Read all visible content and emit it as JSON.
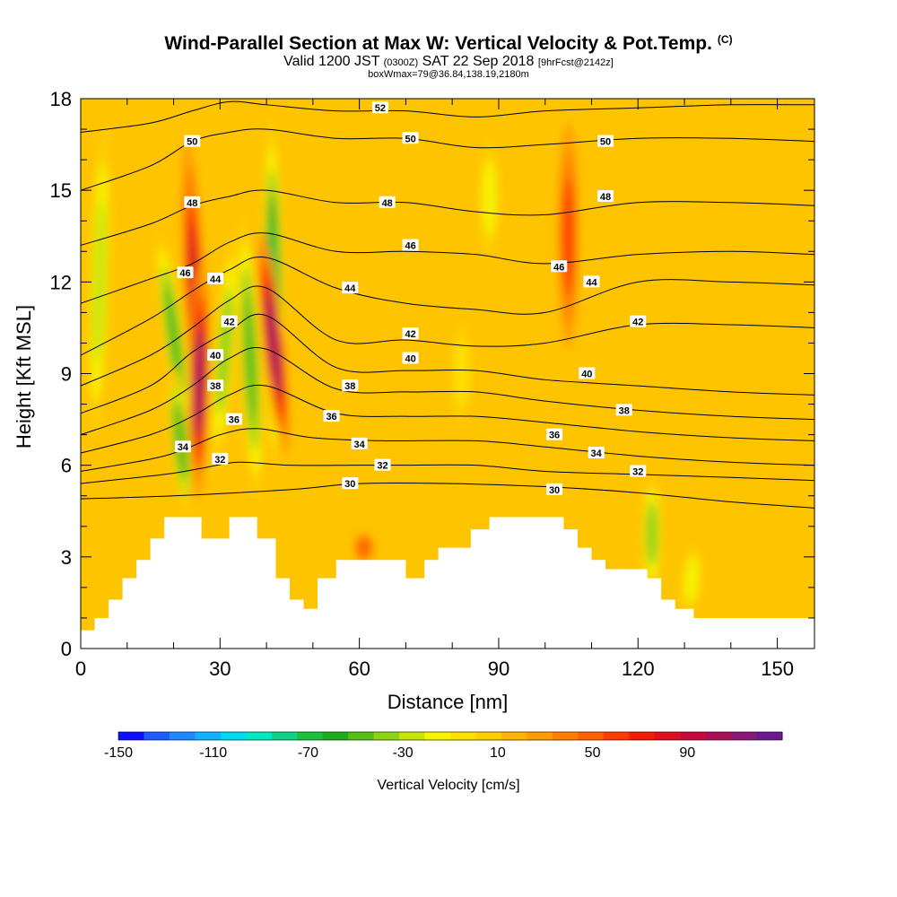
{
  "header": {
    "title": "Wind-Parallel Section at Max W: Vertical Velocity & Pot.Temp.",
    "title_mark": "(C)",
    "valid_prefix": "Valid 1200 JST",
    "valid_utc": "(0300Z)",
    "valid_date": "SAT 22 Sep 2018",
    "forecast": "[9hrFcst@2142z]",
    "box_info": "boxWmax=79@36.84,138.19,2180m"
  },
  "chart_data": {
    "type": "heatmap",
    "xlabel": "Distance [nm]",
    "ylabel": "Height [Kft MSL]",
    "xlim": [
      0,
      158
    ],
    "ylim": [
      0,
      18
    ],
    "x_ticks": [
      "0",
      "30",
      "60",
      "90",
      "120",
      "150"
    ],
    "y_ticks": [
      "0",
      "3",
      "6",
      "9",
      "12",
      "15",
      "18"
    ],
    "colorbar": {
      "label": "Vertical Velocity [cm/s]",
      "tick_labels": [
        "-150",
        "-110",
        "-70",
        "-30",
        "10",
        "50",
        "90"
      ],
      "tick_values": [
        -150,
        -110,
        -70,
        -30,
        10,
        50,
        90
      ],
      "min": -150,
      "max": 130,
      "step": 10,
      "colors": [
        "#1010ff",
        "#1e5bff",
        "#2188ff",
        "#14b0ff",
        "#00d8f0",
        "#00e8c0",
        "#12cf86",
        "#1ebf3a",
        "#20aa20",
        "#55bd1a",
        "#8ed21a",
        "#c6e40c",
        "#f4f400",
        "#ffe000",
        "#ffcd00",
        "#ffb400",
        "#ff9b00",
        "#ff8000",
        "#ff6000",
        "#ff3c00",
        "#f21d0a",
        "#dd0f1f",
        "#c50a3c",
        "#a8105a",
        "#8a1a78",
        "#6a1a8e"
      ]
    },
    "terrain_kft": [
      [
        0,
        0.6
      ],
      [
        3,
        0.6
      ],
      [
        3,
        1.0
      ],
      [
        6,
        1.0
      ],
      [
        6,
        1.6
      ],
      [
        9,
        1.6
      ],
      [
        9,
        2.3
      ],
      [
        12,
        2.3
      ],
      [
        12,
        2.9
      ],
      [
        15,
        2.9
      ],
      [
        15,
        3.6
      ],
      [
        18,
        3.6
      ],
      [
        18,
        4.3
      ],
      [
        26,
        4.3
      ],
      [
        26,
        3.6
      ],
      [
        32,
        3.6
      ],
      [
        32,
        4.3
      ],
      [
        38,
        4.3
      ],
      [
        38,
        3.6
      ],
      [
        42,
        3.6
      ],
      [
        42,
        2.3
      ],
      [
        45,
        2.3
      ],
      [
        45,
        1.6
      ],
      [
        48,
        1.6
      ],
      [
        48,
        1.3
      ],
      [
        51,
        1.3
      ],
      [
        51,
        2.3
      ],
      [
        55,
        2.3
      ],
      [
        55,
        2.9
      ],
      [
        70,
        2.9
      ],
      [
        70,
        2.3
      ],
      [
        74,
        2.3
      ],
      [
        74,
        2.9
      ],
      [
        77,
        2.9
      ],
      [
        77,
        3.3
      ],
      [
        84,
        3.3
      ],
      [
        84,
        3.9
      ],
      [
        88,
        3.9
      ],
      [
        88,
        4.3
      ],
      [
        104,
        4.3
      ],
      [
        104,
        3.9
      ],
      [
        107,
        3.9
      ],
      [
        107,
        3.3
      ],
      [
        110,
        3.3
      ],
      [
        110,
        2.9
      ],
      [
        113,
        2.9
      ],
      [
        113,
        2.6
      ],
      [
        122,
        2.6
      ],
      [
        122,
        2.3
      ],
      [
        125,
        2.3
      ],
      [
        125,
        1.6
      ],
      [
        128,
        1.6
      ],
      [
        128,
        1.3
      ],
      [
        132,
        1.3
      ],
      [
        132,
        1.0
      ],
      [
        158,
        1.0
      ]
    ],
    "theta_contours_C": [
      {
        "label": "30",
        "x": [
          0,
          20,
          45,
          60,
          80,
          100,
          120,
          140,
          158
        ],
        "y": [
          4.9,
          5.0,
          5.2,
          5.4,
          5.4,
          5.3,
          5.1,
          4.8,
          4.6
        ]
      },
      {
        "label": "32",
        "x": [
          0,
          18,
          26,
          34,
          45,
          60,
          70,
          85,
          100,
          120,
          140,
          158
        ],
        "y": [
          5.4,
          5.7,
          5.9,
          6.1,
          6.0,
          6.0,
          6.0,
          6.0,
          5.8,
          5.7,
          5.6,
          5.5
        ]
      },
      {
        "label": "34",
        "x": [
          0,
          15,
          22,
          30,
          38,
          50,
          65,
          85,
          100,
          120,
          140,
          158
        ],
        "y": [
          5.8,
          6.2,
          6.5,
          7.0,
          7.2,
          6.9,
          6.8,
          6.8,
          6.6,
          6.3,
          6.1,
          6.0
        ]
      },
      {
        "label": "36",
        "x": [
          0,
          15,
          24,
          32,
          40,
          55,
          70,
          85,
          100,
          120,
          140,
          158
        ],
        "y": [
          6.4,
          7.0,
          7.6,
          8.3,
          8.6,
          7.7,
          7.6,
          7.6,
          7.4,
          7.1,
          6.9,
          6.8
        ]
      },
      {
        "label": "38",
        "x": [
          0,
          15,
          24,
          32,
          40,
          55,
          70,
          85,
          100,
          120,
          140,
          158
        ],
        "y": [
          7.0,
          7.8,
          8.6,
          9.5,
          9.8,
          8.5,
          8.4,
          8.4,
          8.1,
          7.8,
          7.6,
          7.5
        ]
      },
      {
        "label": "40",
        "x": [
          0,
          15,
          24,
          32,
          40,
          55,
          70,
          85,
          100,
          120,
          140,
          158
        ],
        "y": [
          7.7,
          8.6,
          9.7,
          10.4,
          10.9,
          9.2,
          9.1,
          9.1,
          8.8,
          8.6,
          8.4,
          8.3
        ]
      },
      {
        "label": "42",
        "x": [
          0,
          15,
          24,
          32,
          40,
          55,
          70,
          85,
          100,
          120,
          140,
          158
        ],
        "y": [
          8.6,
          9.6,
          10.5,
          11.4,
          11.8,
          10.1,
          10.1,
          9.9,
          10.0,
          10.6,
          10.6,
          10.5
        ]
      },
      {
        "label": "44",
        "x": [
          0,
          15,
          24,
          32,
          40,
          55,
          70,
          85,
          100,
          120,
          140,
          158
        ],
        "y": [
          9.6,
          10.8,
          11.7,
          12.4,
          12.8,
          11.8,
          11.3,
          11.1,
          11.0,
          12.0,
          12.0,
          11.9
        ]
      },
      {
        "label": "46",
        "x": [
          0,
          15,
          24,
          32,
          40,
          55,
          70,
          85,
          100,
          120,
          140,
          158
        ],
        "y": [
          11.3,
          12.1,
          12.6,
          13.3,
          13.6,
          13.0,
          13.0,
          12.9,
          12.6,
          12.9,
          13.0,
          12.9
        ]
      },
      {
        "label": "48",
        "x": [
          0,
          15,
          24,
          32,
          40,
          55,
          70,
          85,
          100,
          120,
          140,
          158
        ],
        "y": [
          13.2,
          13.9,
          14.5,
          14.8,
          15.0,
          14.6,
          14.6,
          14.3,
          14.2,
          14.6,
          14.6,
          14.5
        ]
      },
      {
        "label": "50",
        "x": [
          0,
          15,
          24,
          32,
          40,
          55,
          70,
          85,
          100,
          120,
          140,
          158
        ],
        "y": [
          15.0,
          15.8,
          16.6,
          16.9,
          17.0,
          16.7,
          16.7,
          16.4,
          16.5,
          16.7,
          16.7,
          16.6
        ]
      },
      {
        "label": "52",
        "x": [
          0,
          15,
          24,
          32,
          40,
          55,
          70,
          85,
          100,
          120,
          140,
          158
        ],
        "y": [
          16.9,
          17.2,
          17.6,
          17.9,
          17.8,
          17.6,
          17.6,
          17.4,
          17.6,
          17.7,
          17.8,
          17.8
        ]
      }
    ],
    "contour_labels": [
      {
        "text": "52",
        "x": 64.5,
        "y": 17.7
      },
      {
        "text": "50",
        "x": 24,
        "y": 16.6
      },
      {
        "text": "50",
        "x": 71,
        "y": 16.7
      },
      {
        "text": "50",
        "x": 113,
        "y": 16.6
      },
      {
        "text": "48",
        "x": 24,
        "y": 14.6
      },
      {
        "text": "48",
        "x": 66,
        "y": 14.6
      },
      {
        "text": "48",
        "x": 113,
        "y": 14.8
      },
      {
        "text": "46",
        "x": 22.5,
        "y": 12.3
      },
      {
        "text": "46",
        "x": 71,
        "y": 13.2
      },
      {
        "text": "46",
        "x": 103,
        "y": 12.5
      },
      {
        "text": "44",
        "x": 29,
        "y": 12.1
      },
      {
        "text": "44",
        "x": 58,
        "y": 11.8
      },
      {
        "text": "44",
        "x": 110,
        "y": 12.0
      },
      {
        "text": "42",
        "x": 32,
        "y": 10.7
      },
      {
        "text": "42",
        "x": 71,
        "y": 10.3
      },
      {
        "text": "42",
        "x": 120,
        "y": 10.7
      },
      {
        "text": "40",
        "x": 29,
        "y": 9.6
      },
      {
        "text": "40",
        "x": 71,
        "y": 9.5
      },
      {
        "text": "40",
        "x": 109,
        "y": 9.0
      },
      {
        "text": "38",
        "x": 29,
        "y": 8.6
      },
      {
        "text": "38",
        "x": 58,
        "y": 8.6
      },
      {
        "text": "38",
        "x": 117,
        "y": 7.8
      },
      {
        "text": "36",
        "x": 33,
        "y": 7.5
      },
      {
        "text": "36",
        "x": 54,
        "y": 7.6
      },
      {
        "text": "36",
        "x": 102,
        "y": 7.0
      },
      {
        "text": "34",
        "x": 22,
        "y": 6.6
      },
      {
        "text": "34",
        "x": 60,
        "y": 6.7
      },
      {
        "text": "34",
        "x": 111,
        "y": 6.4
      },
      {
        "text": "32",
        "x": 30,
        "y": 6.2
      },
      {
        "text": "32",
        "x": 65,
        "y": 6.0
      },
      {
        "text": "32",
        "x": 120,
        "y": 5.8
      },
      {
        "text": "30",
        "x": 58,
        "y": 5.4
      },
      {
        "text": "30",
        "x": 102,
        "y": 5.2
      }
    ],
    "vertical_velocity_features_cm_s": [
      {
        "x_top": 5,
        "y_top": 17.0,
        "x_bot": 3,
        "y_bot": 7.0,
        "value": -40
      },
      {
        "x_top": 17,
        "y_top": 13.5,
        "x_bot": 23,
        "y_bot": 7.0,
        "value": -60
      },
      {
        "x_top": 23,
        "y_top": 16.5,
        "x_bot": 26,
        "y_bot": 7.0,
        "value": 65
      },
      {
        "x_top": 26,
        "y_top": 12.5,
        "x_bot": 25,
        "y_bot": 5.0,
        "value": 80
      },
      {
        "x_top": 35,
        "y_top": 14.0,
        "x_bot": 38,
        "y_bot": 5.0,
        "value": -60
      },
      {
        "x_top": 41,
        "y_top": 17.2,
        "x_bot": 42,
        "y_bot": 6.0,
        "value": -80
      },
      {
        "x_top": 39,
        "y_top": 13.5,
        "x_bot": 44,
        "y_bot": 6.5,
        "value": 80
      },
      {
        "x_top": 20,
        "y_top": 9.0,
        "x_bot": 23,
        "y_bot": 4.6,
        "value": -55
      },
      {
        "x_top": 33,
        "y_top": 13.5,
        "x_bot": 29,
        "y_bot": 6.0,
        "value": -50
      },
      {
        "x_top": 82,
        "y_top": 10.5,
        "x_bot": 82,
        "y_bot": 7.5,
        "value": -20
      },
      {
        "x_top": 88,
        "y_top": 16.5,
        "x_bot": 88,
        "y_bot": 13.0,
        "value": -25
      },
      {
        "x_top": 105,
        "y_top": 17.0,
        "x_bot": 105,
        "y_bot": 10.0,
        "value": 40
      },
      {
        "x_top": 61,
        "y_top": 3.3,
        "x_bot": 61,
        "y_bot": 3.3,
        "value": 35
      },
      {
        "x_top": 123,
        "y_top": 5.5,
        "x_bot": 123,
        "y_bot": 2.0,
        "value": -45
      },
      {
        "x_top": 132,
        "y_top": 3.2,
        "x_bot": 131,
        "y_bot": 1.3,
        "value": -25
      }
    ]
  }
}
